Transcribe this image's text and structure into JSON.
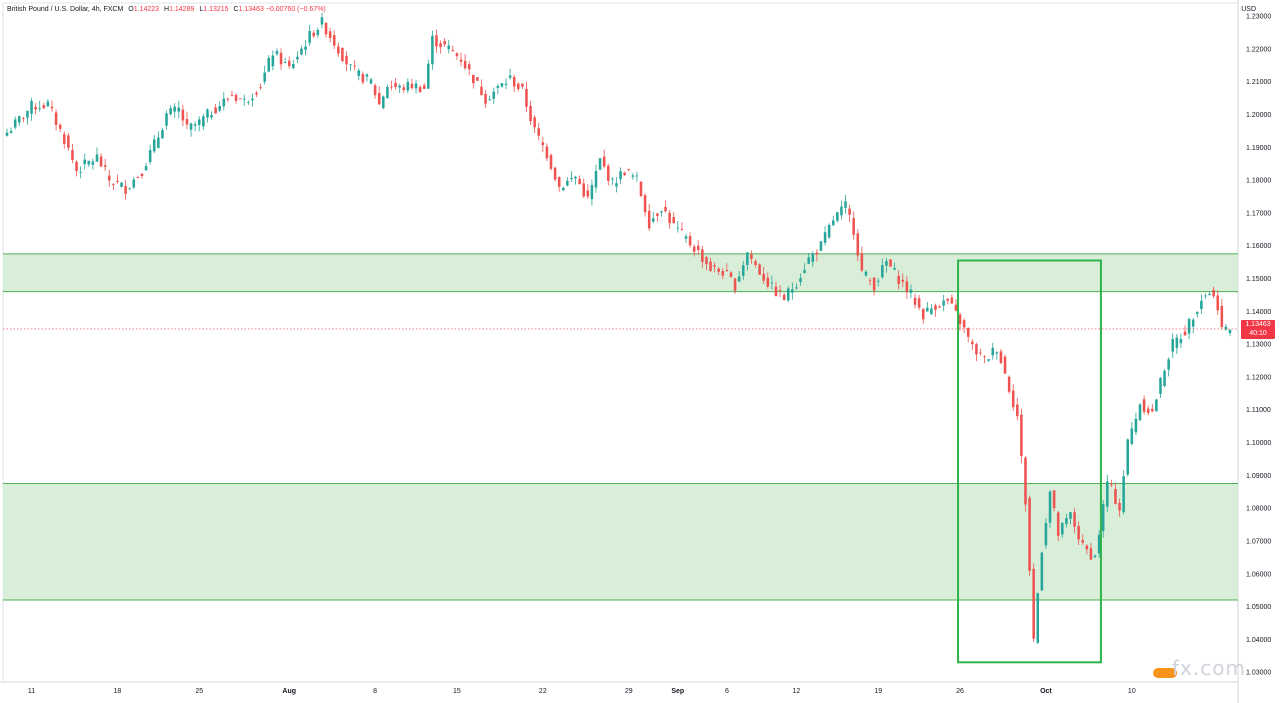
{
  "legend": {
    "symbol": "British Pound / U.S. Dollar, 4h, FXCM",
    "open_label": "O",
    "open": "1.14223",
    "high_label": "H",
    "high": "1.14289",
    "low_label": "L",
    "low": "1.13215",
    "close_label": "C",
    "close": "1.13463",
    "change": "−0.00760 (−0.67%)"
  },
  "axis": {
    "currency": "USD"
  },
  "last_price": {
    "price": "1.13463",
    "countdown": "40:10"
  },
  "colors": {
    "up": "#26a69a",
    "down": "#ef5350",
    "zone_fill": "#d9eed9",
    "zone_line": "#4caf50",
    "box": "#2db34a",
    "price_tag": "#f23645"
  },
  "watermark": "fx.com",
  "chart_data": {
    "type": "candlestick",
    "title": "British Pound / U.S. Dollar, 4h, FXCM",
    "ylim": [
      1.027,
      1.234
    ],
    "y_ticks": [
      "1.23000",
      "1.22000",
      "1.21000",
      "1.20000",
      "1.19000",
      "1.18000",
      "1.17000",
      "1.16000",
      "1.15000",
      "1.14000",
      "1.13000",
      "1.12000",
      "1.11000",
      "1.10000",
      "1.09000",
      "1.08000",
      "1.07000",
      "1.06000",
      "1.05000",
      "1.04000",
      "1.03000"
    ],
    "x_ticks": [
      "11",
      "18",
      "25",
      "Aug",
      "8",
      "15",
      "22",
      "29",
      "Sep",
      "6",
      "12",
      "19",
      "26",
      "Oct",
      "10"
    ],
    "zones": [
      {
        "from": 1.146,
        "to": 1.1575
      },
      {
        "from": 1.052,
        "to": 1.0875
      }
    ],
    "highlight_box": {
      "x_from": "26",
      "x_to": "Oct",
      "y_from": 1.033,
      "y_to": 1.1555
    },
    "close_path": [
      [
        0,
        1.1945
      ],
      [
        6,
        1.2025
      ],
      [
        10,
        1.203
      ],
      [
        14,
        1.1925
      ],
      [
        17,
        1.183
      ],
      [
        22,
        1.187
      ],
      [
        25,
        1.18
      ],
      [
        29,
        1.1775
      ],
      [
        33,
        1.183
      ],
      [
        37,
        1.1935
      ],
      [
        39,
        1.2
      ],
      [
        42,
        1.2015
      ],
      [
        44,
        1.1955
      ],
      [
        47,
        1.1975
      ],
      [
        50,
        1.201
      ],
      [
        55,
        1.206
      ],
      [
        58,
        1.204
      ],
      [
        62,
        1.209
      ],
      [
        65,
        1.219
      ],
      [
        69,
        1.214
      ],
      [
        71,
        1.218
      ],
      [
        74,
        1.224
      ],
      [
        77,
        1.228
      ],
      [
        81,
        1.22
      ],
      [
        84,
        1.214
      ],
      [
        86,
        1.212
      ],
      [
        89,
        1.21
      ],
      [
        91,
        1.203
      ],
      [
        93,
        1.209
      ],
      [
        96,
        1.208
      ],
      [
        99,
        1.209
      ],
      [
        102,
        1.208
      ],
      [
        104,
        1.223
      ],
      [
        108,
        1.22
      ],
      [
        111,
        1.217
      ],
      [
        114,
        1.211
      ],
      [
        117,
        1.205
      ],
      [
        120,
        1.208
      ],
      [
        123,
        1.211
      ],
      [
        126,
        1.207
      ],
      [
        129,
        1.195
      ],
      [
        132,
        1.188
      ],
      [
        135,
        1.178
      ],
      [
        139,
        1.181
      ],
      [
        142,
        1.174
      ],
      [
        145,
        1.186
      ],
      [
        148,
        1.179
      ],
      [
        151,
        1.183
      ],
      [
        154,
        1.18
      ],
      [
        157,
        1.167
      ],
      [
        160,
        1.172
      ],
      [
        163,
        1.166
      ],
      [
        166,
        1.162
      ],
      [
        169,
        1.158
      ],
      [
        172,
        1.153
      ],
      [
        175,
        1.152
      ],
      [
        178,
        1.148
      ],
      [
        181,
        1.158
      ],
      [
        184,
        1.152
      ],
      [
        187,
        1.147
      ],
      [
        190,
        1.144
      ],
      [
        193,
        1.149
      ],
      [
        196,
        1.156
      ],
      [
        199,
        1.16
      ],
      [
        202,
        1.168
      ],
      [
        205,
        1.172
      ],
      [
        207,
        1.165
      ],
      [
        209,
        1.152
      ],
      [
        212,
        1.148
      ],
      [
        215,
        1.155
      ],
      [
        218,
        1.15
      ],
      [
        221,
        1.145
      ],
      [
        224,
        1.139
      ],
      [
        227,
        1.142
      ],
      [
        230,
        1.143
      ],
      [
        233,
        1.137
      ],
      [
        236,
        1.129
      ],
      [
        239,
        1.125
      ],
      [
        242,
        1.129
      ],
      [
        244,
        1.121
      ],
      [
        247,
        1.108
      ],
      [
        249,
        1.082
      ],
      [
        251,
        1.04
      ],
      [
        253,
        1.068
      ],
      [
        255,
        1.085
      ],
      [
        257,
        1.072
      ],
      [
        260,
        1.078
      ],
      [
        263,
        1.068
      ],
      [
        266,
        1.065
      ],
      [
        269,
        1.088
      ],
      [
        272,
        1.08
      ],
      [
        274,
        1.1
      ],
      [
        277,
        1.112
      ],
      [
        280,
        1.109
      ],
      [
        283,
        1.123
      ],
      [
        285,
        1.13
      ],
      [
        288,
        1.134
      ],
      [
        290,
        1.139
      ],
      [
        292,
        1.144
      ],
      [
        294,
        1.146
      ],
      [
        296,
        1.142
      ],
      [
        297,
        1.1346
      ]
    ],
    "x_tick_positions": [
      6,
      27,
      47,
      69,
      90,
      110,
      131,
      152,
      164,
      176,
      193,
      213,
      233,
      254,
      275
    ]
  }
}
